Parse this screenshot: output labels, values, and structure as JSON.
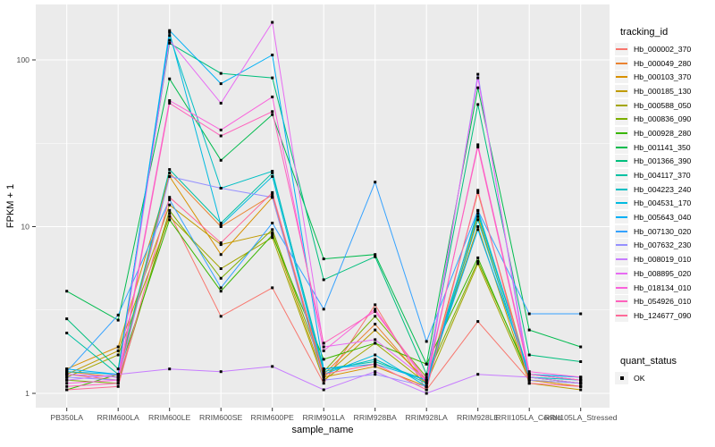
{
  "colors": {
    "panel_bg": "#EBEBEB",
    "grid": "#FFFFFF",
    "tick_label": "#4D4D4D",
    "axis_title": "#000000",
    "marker": "#000000",
    "legend_key_bg": "#F2F2F2"
  },
  "chart_data": {
    "type": "line",
    "title": "",
    "xlabel": "sample_name",
    "ylabel": "FPKM + 1",
    "y_scale": "log10",
    "y_ticks": [
      1,
      10,
      100
    ],
    "y_minor_breaks": [
      3.1623,
      31.623
    ],
    "ylim": [
      0.83,
      200
    ],
    "grid": "on",
    "marker_shape": "black-square",
    "legend": {
      "title": "tracking_id",
      "position": "right"
    },
    "quant_legend": {
      "title": "quant_status",
      "items": [
        "OK"
      ]
    },
    "categories": [
      "PB350LA",
      "RRIM600LA",
      "RRIM600LE",
      "RRIM600SE",
      "RRIM600PE",
      "RRIM901LA",
      "RRIM928BA",
      "RRIM928LA",
      "RRIM928LE",
      "RRII105LA_Control",
      "RRII105LA_Stressed"
    ],
    "series": [
      {
        "name": "Hb_000002_370",
        "color": "#F8766D",
        "values": [
          1.3,
          1.2,
          12.0,
          2.9,
          4.3,
          1.15,
          3.4,
          1.05,
          2.7,
          1.2,
          1.1
        ]
      },
      {
        "name": "Hb_000049_280",
        "color": "#EA8331",
        "values": [
          1.35,
          1.25,
          21.0,
          10.0,
          15.5,
          1.3,
          2.6,
          1.15,
          16.0,
          1.25,
          1.15
        ]
      },
      {
        "name": "Hb_000103_370",
        "color": "#D89000",
        "values": [
          1.4,
          1.9,
          20.0,
          6.8,
          15.0,
          1.25,
          1.45,
          1.1,
          11.5,
          1.2,
          1.1
        ]
      },
      {
        "name": "Hb_000185_130",
        "color": "#C09B00",
        "values": [
          1.3,
          1.8,
          13.5,
          7.8,
          9.2,
          1.25,
          2.4,
          1.2,
          10.0,
          1.15,
          1.05
        ]
      },
      {
        "name": "Hb_000588_050",
        "color": "#A3A500",
        "values": [
          1.25,
          1.7,
          11.5,
          5.6,
          8.6,
          1.2,
          2.0,
          1.15,
          6.0,
          1.2,
          1.15
        ]
      },
      {
        "name": "Hb_000836_090",
        "color": "#7CAE00",
        "values": [
          1.2,
          1.15,
          12.5,
          4.9,
          9.6,
          1.35,
          2.9,
          1.25,
          6.2,
          1.3,
          1.2
        ]
      },
      {
        "name": "Hb_000928_280",
        "color": "#39B600",
        "values": [
          1.05,
          1.3,
          11.0,
          4.1,
          8.9,
          1.6,
          2.0,
          1.5,
          6.5,
          1.25,
          1.15
        ]
      },
      {
        "name": "Hb_001141_350",
        "color": "#00BB4E",
        "values": [
          4.1,
          2.75,
          77.0,
          25.0,
          47.0,
          6.4,
          6.8,
          1.5,
          68.0,
          2.4,
          1.9
        ]
      },
      {
        "name": "Hb_001366_390",
        "color": "#00BF7D",
        "values": [
          2.8,
          1.4,
          126.0,
          83.0,
          78.0,
          4.8,
          6.6,
          1.3,
          54.0,
          1.7,
          1.55
        ]
      },
      {
        "name": "Hb_004117_370",
        "color": "#00C1A3",
        "values": [
          2.3,
          1.3,
          22.0,
          10.5,
          21.0,
          1.4,
          1.55,
          1.2,
          12.0,
          1.3,
          1.25
        ]
      },
      {
        "name": "Hb_004223_240",
        "color": "#00BFC4",
        "values": [
          1.3,
          1.25,
          140.0,
          17.0,
          21.5,
          1.35,
          1.6,
          1.15,
          11.0,
          1.25,
          1.2
        ]
      },
      {
        "name": "Hb_004531_170",
        "color": "#00BAE0",
        "values": [
          1.35,
          1.3,
          146.0,
          10.2,
          20.0,
          1.3,
          1.7,
          1.1,
          12.5,
          1.3,
          1.2
        ]
      },
      {
        "name": "Hb_005643_040",
        "color": "#00B0F6",
        "values": [
          1.4,
          1.3,
          150.0,
          72.0,
          107.0,
          1.4,
          1.5,
          1.2,
          9.6,
          1.3,
          1.25
        ]
      },
      {
        "name": "Hb_007130_020",
        "color": "#35A2FF",
        "values": [
          1.35,
          2.95,
          14.5,
          4.3,
          10.5,
          3.2,
          18.5,
          2.05,
          12.5,
          3.0,
          3.0
        ]
      },
      {
        "name": "Hb_007632_230",
        "color": "#9590FF",
        "values": [
          1.25,
          1.2,
          20.0,
          17.0,
          15.0,
          1.2,
          1.3,
          1.1,
          82.0,
          1.2,
          1.15
        ]
      },
      {
        "name": "Hb_008019_010",
        "color": "#C77CFF",
        "values": [
          1.2,
          1.3,
          1.4,
          1.35,
          1.45,
          1.05,
          1.35,
          1.0,
          1.3,
          1.25,
          1.15
        ]
      },
      {
        "name": "Hb_008895_020",
        "color": "#E76BF3",
        "values": [
          1.3,
          1.25,
          131.0,
          55.0,
          168.0,
          1.9,
          2.1,
          1.2,
          78.0,
          1.3,
          1.2
        ]
      },
      {
        "name": "Hb_018134_010",
        "color": "#FA62DB",
        "values": [
          1.15,
          1.2,
          57.0,
          38.0,
          60.0,
          1.8,
          3.2,
          1.15,
          31.0,
          1.35,
          1.25
        ]
      },
      {
        "name": "Hb_054926_010",
        "color": "#FF62BC",
        "values": [
          1.1,
          1.15,
          55.0,
          35.0,
          49.0,
          2.0,
          3.1,
          1.2,
          30.0,
          1.3,
          1.2
        ]
      },
      {
        "name": "Hb_124677_090",
        "color": "#FF6A98",
        "values": [
          1.05,
          1.1,
          15.0,
          8.0,
          16.0,
          1.3,
          1.5,
          1.05,
          16.5,
          1.15,
          1.1
        ]
      }
    ]
  }
}
